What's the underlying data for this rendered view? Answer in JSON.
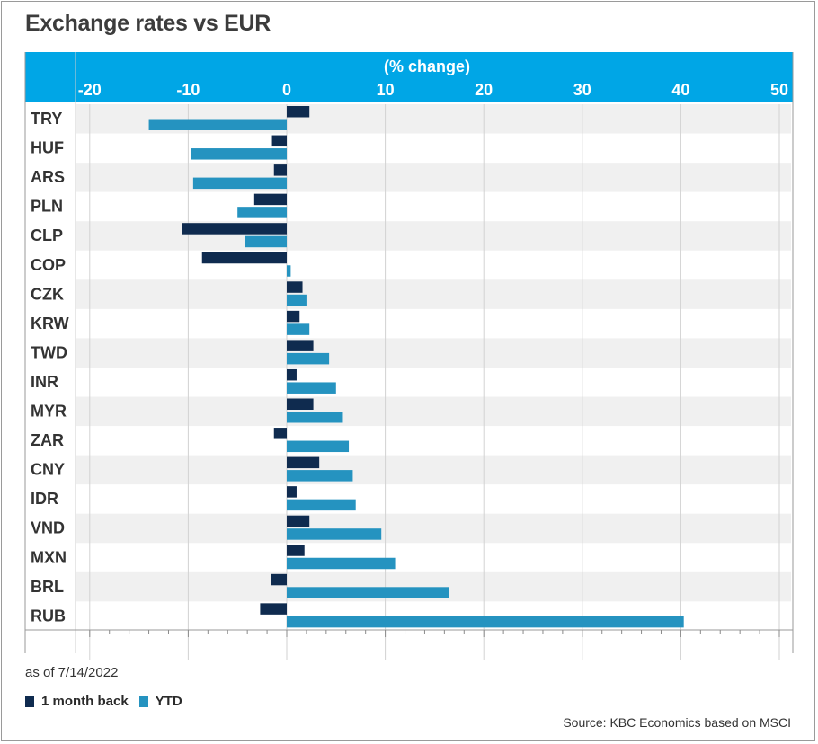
{
  "title": "Exchange rates vs EUR",
  "as_of": "as of 7/14/2022",
  "source": "Source: KBC Economics based on MSCI",
  "colors": {
    "header": "#00a6e6",
    "one_month": "#0f2b4f",
    "ytd": "#2593c0",
    "band": "#f0f0f0"
  },
  "legend": [
    {
      "label": "1 month back",
      "color": "#0f2b4f"
    },
    {
      "label": "YTD",
      "color": "#2593c0"
    }
  ],
  "chart_data": {
    "type": "bar",
    "orientation": "horizontal",
    "xlabel": "(% change)",
    "xlim": [
      -21,
      51
    ],
    "xticks": [
      -20,
      -10,
      0,
      10,
      20,
      30,
      40,
      50
    ],
    "categories": [
      "TRY",
      "HUF",
      "ARS",
      "PLN",
      "CLP",
      "COP",
      "CZK",
      "KRW",
      "TWD",
      "INR",
      "MYR",
      "ZAR",
      "CNY",
      "IDR",
      "VND",
      "MXN",
      "BRL",
      "RUB"
    ],
    "series": [
      {
        "name": "1 month back",
        "values": [
          2.3,
          -1.5,
          -1.3,
          -3.3,
          -10.6,
          -8.6,
          1.6,
          1.3,
          2.7,
          1.0,
          2.7,
          -1.3,
          3.3,
          1.0,
          2.3,
          1.8,
          -1.6,
          -2.7
        ]
      },
      {
        "name": "YTD",
        "values": [
          -14.0,
          -9.7,
          -9.5,
          -5.0,
          -4.2,
          0.4,
          2.0,
          2.3,
          4.3,
          5.0,
          5.7,
          6.3,
          6.7,
          7.0,
          9.6,
          11.0,
          16.5,
          40.3
        ]
      }
    ],
    "grid": true,
    "legend_position": "bottom-left"
  }
}
